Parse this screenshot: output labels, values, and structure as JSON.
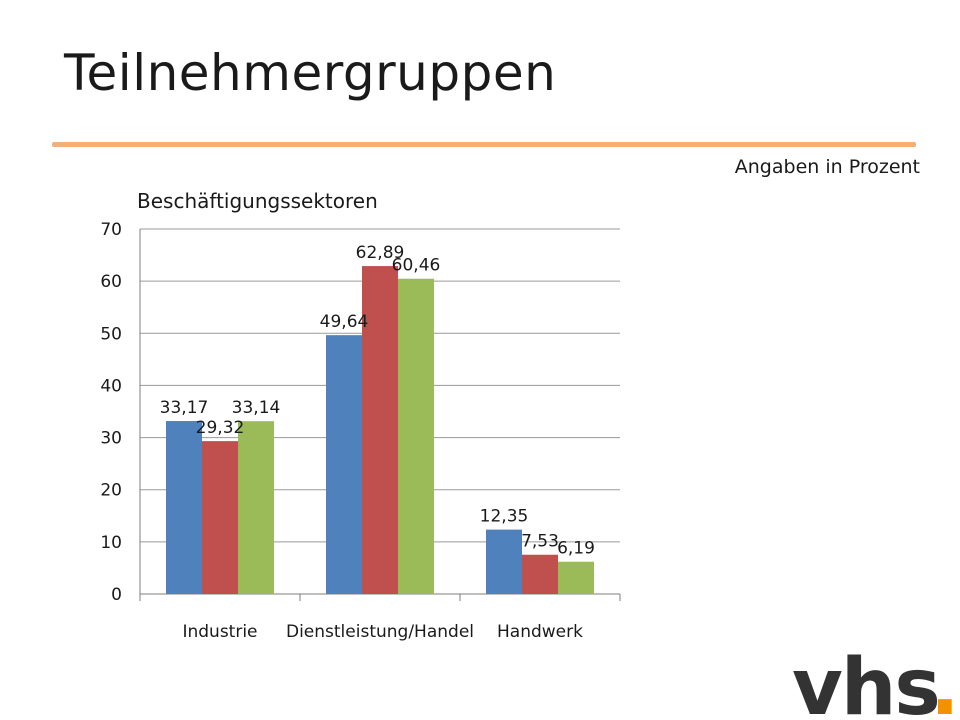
{
  "slide": {
    "title": "Teilnehmergruppen",
    "units_note": "Angaben in Prozent"
  },
  "logo": {
    "text": "vhs",
    "dot": ".",
    "text_color": "#333333",
    "dot_color": "#f39200"
  },
  "chart_data": {
    "type": "bar",
    "title": "Beschäftigungssektoren",
    "xlabel": "",
    "ylabel": "",
    "categories": [
      "Industrie",
      "Dienstleistung/Handel",
      "Handwerk"
    ],
    "series": [
      {
        "values": [
          33.17,
          49.64,
          12.35
        ],
        "labels": [
          "33,17",
          "49,64",
          "12,35"
        ],
        "color": "#4f81bd"
      },
      {
        "values": [
          29.32,
          62.89,
          7.53
        ],
        "labels": [
          "29,32",
          "62,89",
          "7,53"
        ],
        "color": "#c0504d"
      },
      {
        "values": [
          33.14,
          60.46,
          6.19
        ],
        "labels": [
          "33,14",
          "60,46",
          "6,19"
        ],
        "color": "#9bbb59"
      }
    ],
    "ylim": [
      0,
      70
    ],
    "yticks": [
      0,
      10,
      20,
      30,
      40,
      50,
      60,
      70
    ],
    "grid": true,
    "legend": "none"
  }
}
